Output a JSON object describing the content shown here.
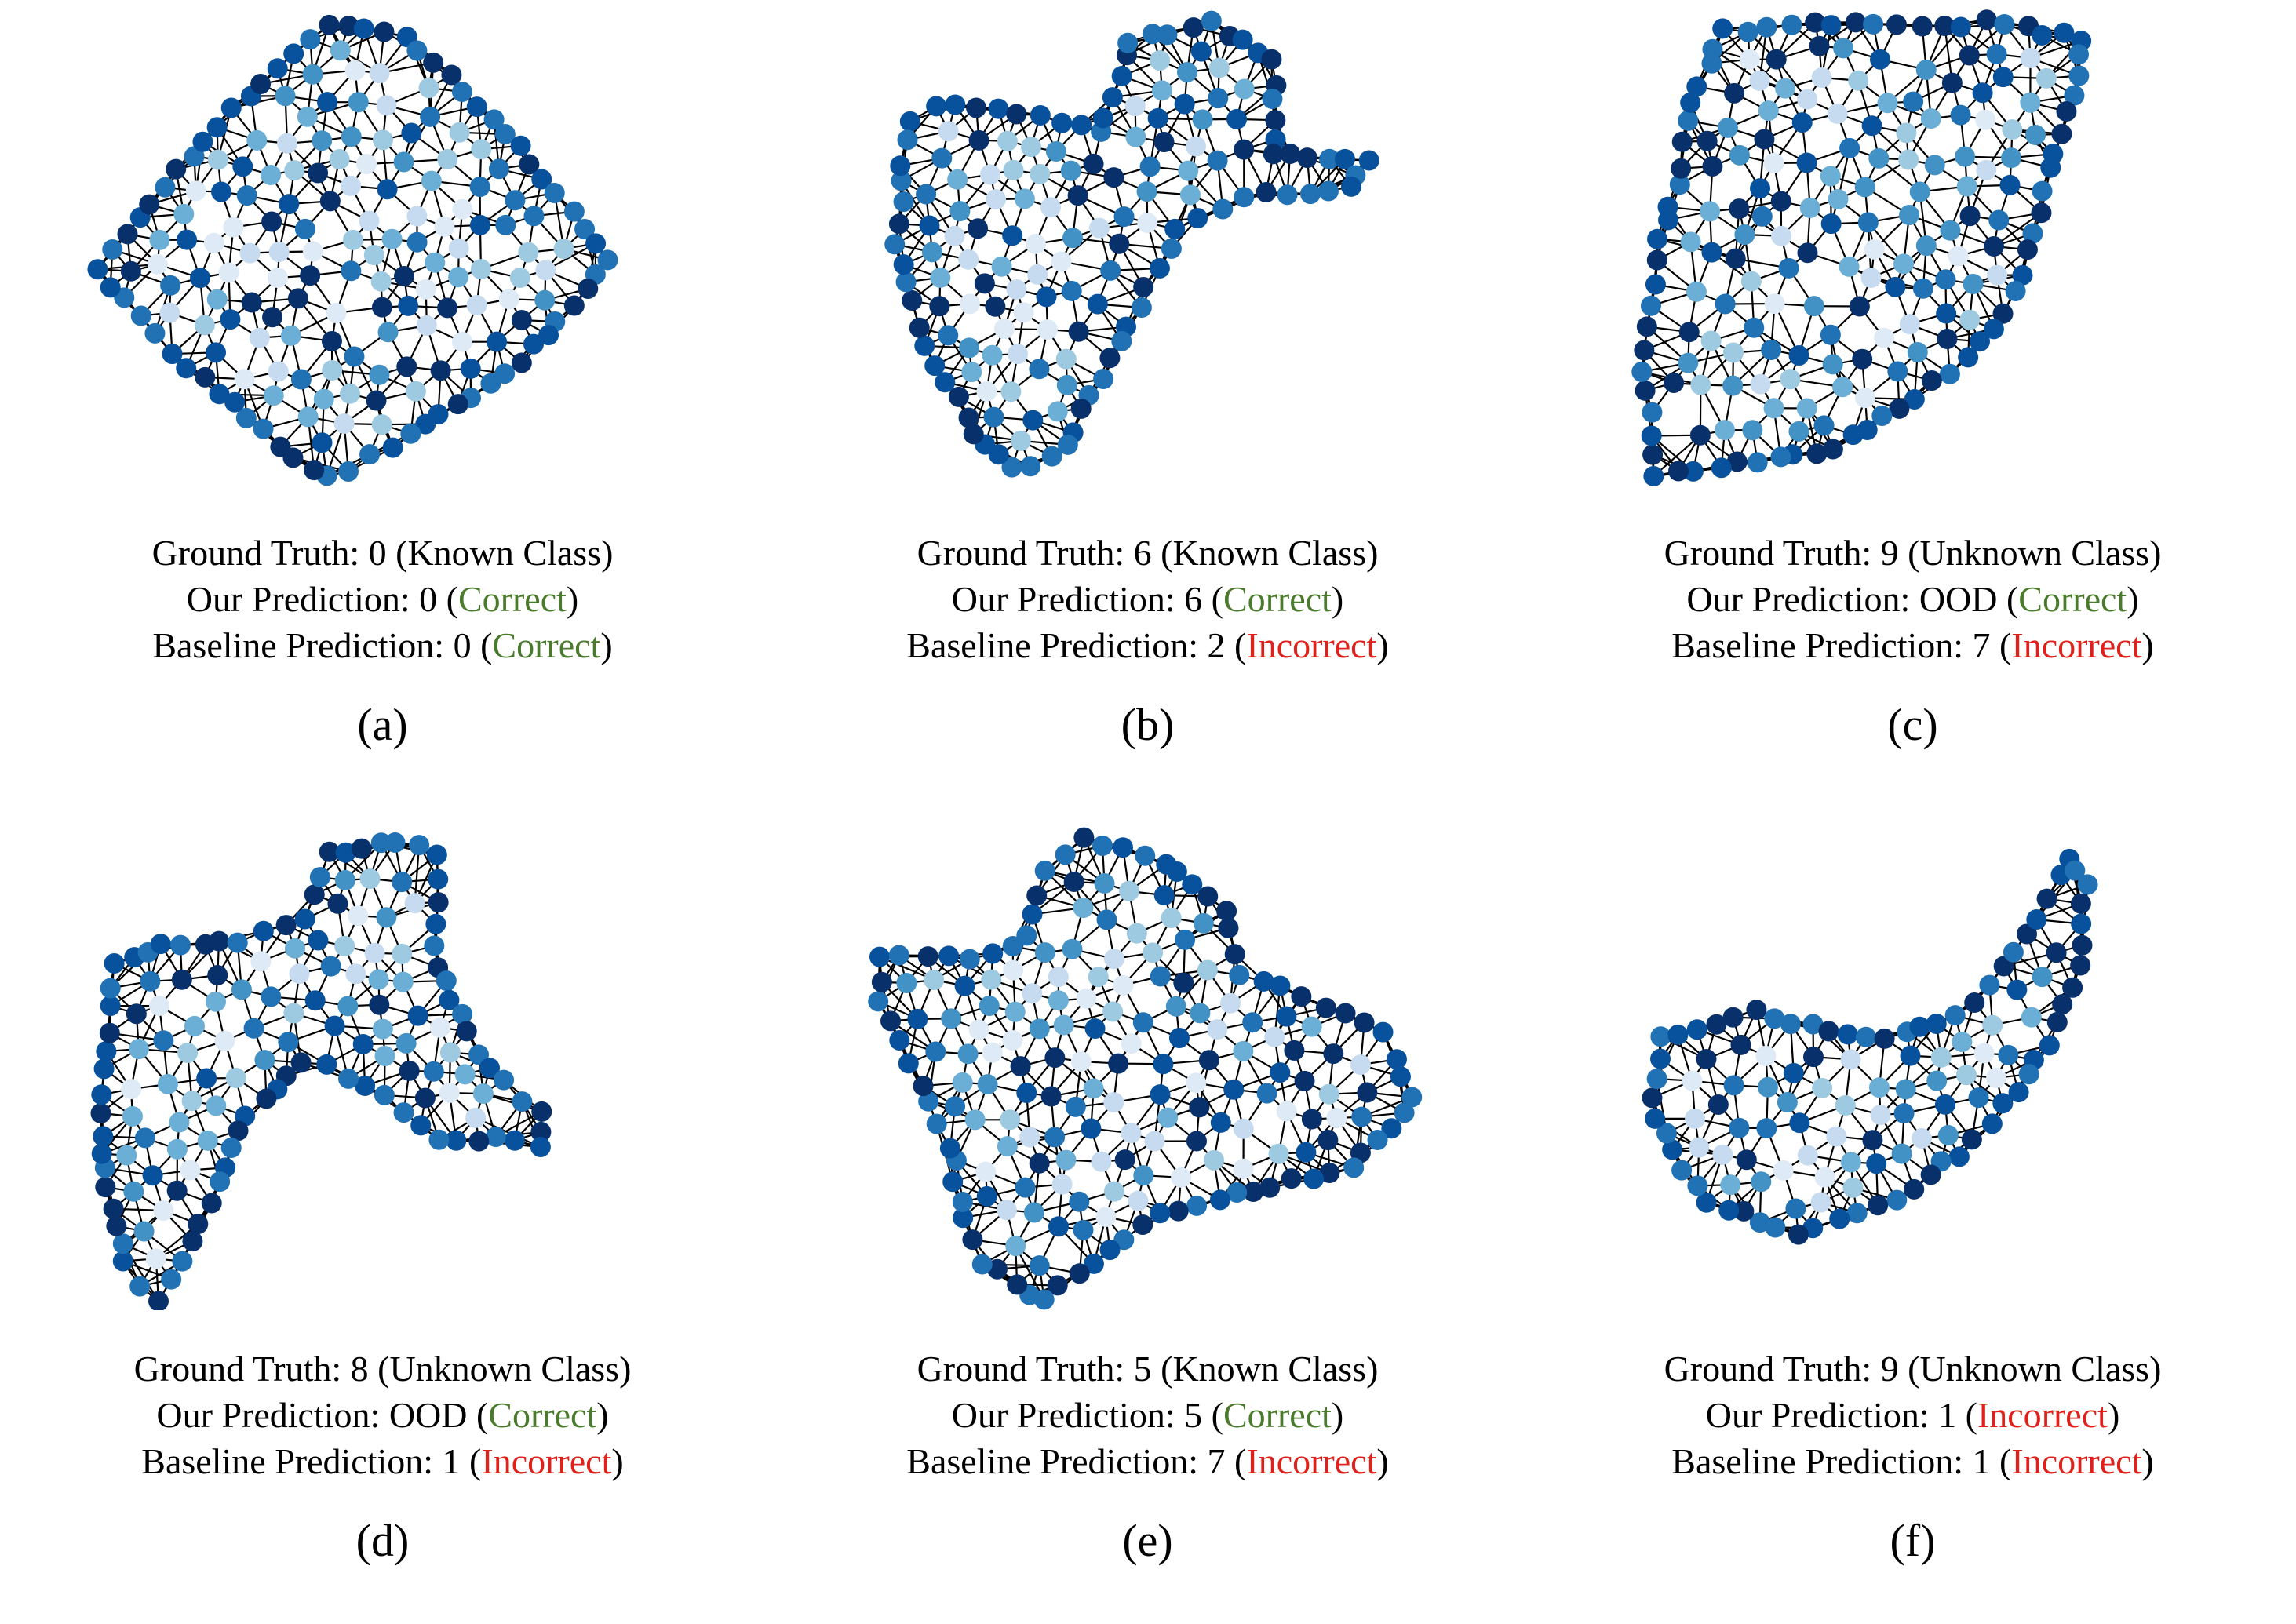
{
  "panels": [
    {
      "tag": "(a)",
      "ground_truth": "Ground Truth: 0 (Known Class)",
      "our_prefix": "Our Prediction: 0 (",
      "our_status": "Correct",
      "our_status_type": "correct",
      "baseline_prefix": "Baseline Prediction: 0 (",
      "baseline_status": "Correct",
      "baseline_status_type": "correct",
      "close": ")",
      "shape": "diamond"
    },
    {
      "tag": "(b)",
      "ground_truth": "Ground Truth: 6 (Known Class)",
      "our_prefix": "Our Prediction: 6 (",
      "our_status": "Correct",
      "our_status_type": "correct",
      "baseline_prefix": "Baseline Prediction: 2 (",
      "baseline_status": "Incorrect",
      "baseline_status_type": "incorrect",
      "close": ")",
      "shape": "folded"
    },
    {
      "tag": "(c)",
      "ground_truth": "Ground Truth: 9 (Unknown Class)",
      "our_prefix": "Our Prediction: OOD (",
      "our_status": "Correct",
      "our_status_type": "correct",
      "baseline_prefix": "Baseline Prediction: 7 (",
      "baseline_status": "Incorrect",
      "baseline_status_type": "incorrect",
      "close": ")",
      "shape": "sheet"
    },
    {
      "tag": "(d)",
      "ground_truth": "Ground Truth: 8 (Unknown Class)",
      "our_prefix": "Our Prediction: OOD (",
      "our_status": "Correct",
      "our_status_type": "correct",
      "baseline_prefix": "Baseline Prediction: 1 (",
      "baseline_status": "Incorrect",
      "baseline_status_type": "incorrect",
      "close": ")",
      "shape": "saddle"
    },
    {
      "tag": "(e)",
      "ground_truth": "Ground Truth: 5 (Known Class)",
      "our_prefix": "Our Prediction: 5 (",
      "our_status": "Correct",
      "our_status_type": "correct",
      "baseline_prefix": "Baseline Prediction: 7 (",
      "baseline_status": "Incorrect",
      "baseline_status_type": "incorrect",
      "close": ")",
      "shape": "blob"
    },
    {
      "tag": "(f)",
      "ground_truth": "Ground Truth: 9 (Unknown Class)",
      "our_prefix": "Our Prediction: 1 (",
      "our_status": "Incorrect",
      "our_status_type": "incorrect",
      "baseline_prefix": "Baseline Prediction: 1 (",
      "baseline_status": "Incorrect",
      "baseline_status_type": "incorrect",
      "close": ")",
      "shape": "ramp"
    }
  ],
  "colors": {
    "correct": "#4a7a2c",
    "incorrect": "#e0211b",
    "edge": "#000000",
    "node_palette": [
      "#08306b",
      "#08519c",
      "#2171b5",
      "#4292c6",
      "#6baed6",
      "#9ecae1",
      "#c6dbef",
      "#deebf7"
    ]
  }
}
